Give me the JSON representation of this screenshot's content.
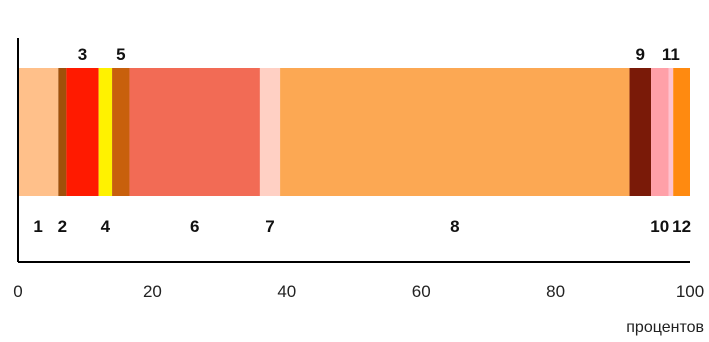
{
  "chart_data": {
    "type": "bar",
    "orientation": "horizontal-stacked",
    "title": "",
    "xlabel": "процентов",
    "ylabel": "",
    "xlim": [
      0,
      100
    ],
    "xticks": [
      "0",
      "20",
      "40",
      "60",
      "80",
      "100"
    ],
    "grid": false,
    "legend": "none",
    "segments": [
      {
        "label": "1",
        "value": 6.0,
        "color": "#FFC08A",
        "label_pos": "below"
      },
      {
        "label": "2",
        "value": 1.2,
        "color": "#A0500A",
        "label_pos": "below"
      },
      {
        "label": "3",
        "value": 4.8,
        "color": "#FF1A00",
        "label_pos": "above"
      },
      {
        "label": "4",
        "value": 2.0,
        "color": "#FFF200",
        "label_pos": "below"
      },
      {
        "label": "5",
        "value": 2.6,
        "color": "#C8600C",
        "label_pos": "above"
      },
      {
        "label": "6",
        "value": 19.4,
        "color": "#F26B55",
        "label_pos": "below"
      },
      {
        "label": "7",
        "value": 3.0,
        "color": "#FFD0C4",
        "label_pos": "below"
      },
      {
        "label": "8",
        "value": 52.0,
        "color": "#FCA853",
        "label_pos": "below"
      },
      {
        "label": "9",
        "value": 3.2,
        "color": "#7A1A08",
        "label_pos": "above"
      },
      {
        "label": "10",
        "value": 2.6,
        "color": "#FFA0A8",
        "label_pos": "below"
      },
      {
        "label": "11",
        "value": 0.7,
        "color": "#FFC3CF",
        "label_pos": "above"
      },
      {
        "label": "12",
        "value": 2.5,
        "color": "#FF8A10",
        "label_pos": "below"
      }
    ]
  }
}
